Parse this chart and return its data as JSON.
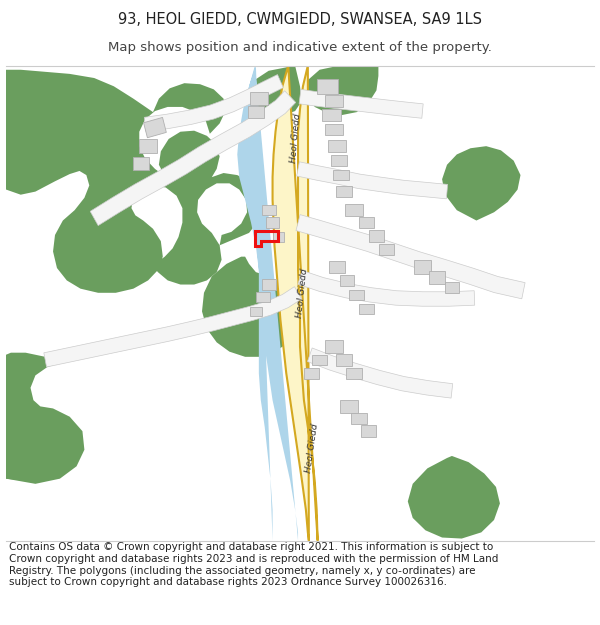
{
  "title": "93, HEOL GIEDD, CWMGIEDD, SWANSEA, SA9 1LS",
  "subtitle": "Map shows position and indicative extent of the property.",
  "footer": "Contains OS data © Crown copyright and database right 2021. This information is subject to Crown copyright and database rights 2023 and is reproduced with the permission of HM Land Registry. The polygons (including the associated geometry, namely x, y co-ordinates) are subject to Crown copyright and database rights 2023 Ordnance Survey 100026316.",
  "bg_color": "#ffffff",
  "map_bg": "#f8f7f4",
  "green_color": "#6a9e5e",
  "road_fill": "#fdf5c8",
  "road_stroke": "#d4a820",
  "river_color": "#aed5ea",
  "building_color": "#d8d8d8",
  "building_stroke": "#b0b0b0",
  "white_road_fill": "#f5f5f5",
  "white_road_stroke": "#cccccc",
  "property_color": "#ee1111",
  "title_fontsize": 10.5,
  "subtitle_fontsize": 9.5,
  "footer_fontsize": 7.5,
  "map_border_color": "#cccccc"
}
